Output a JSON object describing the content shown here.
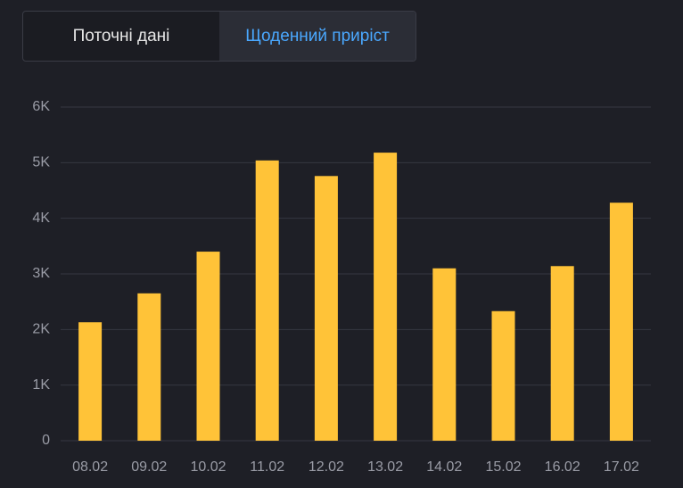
{
  "tabs": [
    "Поточні дані",
    "Щоденний приріст"
  ],
  "chart_data": {
    "type": "bar",
    "categories": [
      "08.02",
      "09.02",
      "10.02",
      "11.02",
      "12.02",
      "13.02",
      "14.02",
      "15.02",
      "16.02",
      "17.02"
    ],
    "values": [
      2130,
      2650,
      3400,
      5040,
      4760,
      5180,
      3100,
      2330,
      3140,
      4280
    ],
    "color": "#ffc338",
    "ylim": [
      0,
      6000
    ],
    "yticks": [
      0,
      {
        "value": 1000,
        "label": "1K"
      },
      {
        "value": 2000,
        "label": "2K"
      },
      {
        "value": 3000,
        "label": "3K"
      },
      {
        "value": 4000,
        "label": "4K"
      },
      {
        "value": 5000,
        "label": "5K"
      },
      {
        "value": 6000,
        "label": "6K"
      }
    ],
    "grid": true
  }
}
